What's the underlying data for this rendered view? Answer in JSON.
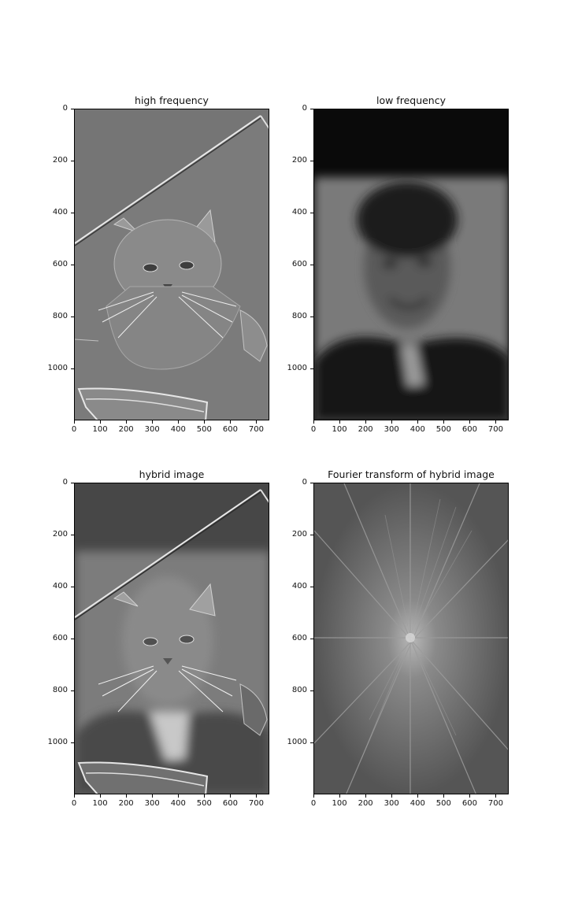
{
  "figure": {
    "panels": [
      {
        "id": "high",
        "title": "high frequency"
      },
      {
        "id": "low",
        "title": "low frequency"
      },
      {
        "id": "hybrid",
        "title": "hybrid image"
      },
      {
        "id": "fourier",
        "title": "Fourier transform of hybrid image"
      }
    ],
    "axes": {
      "x_ticks": [
        "0",
        "100",
        "200",
        "300",
        "400",
        "500",
        "600",
        "700"
      ],
      "y_ticks": [
        "0",
        "200",
        "400",
        "600",
        "800",
        "1000"
      ],
      "x_range": [
        0,
        750
      ],
      "y_range": [
        0,
        1200
      ]
    }
  }
}
